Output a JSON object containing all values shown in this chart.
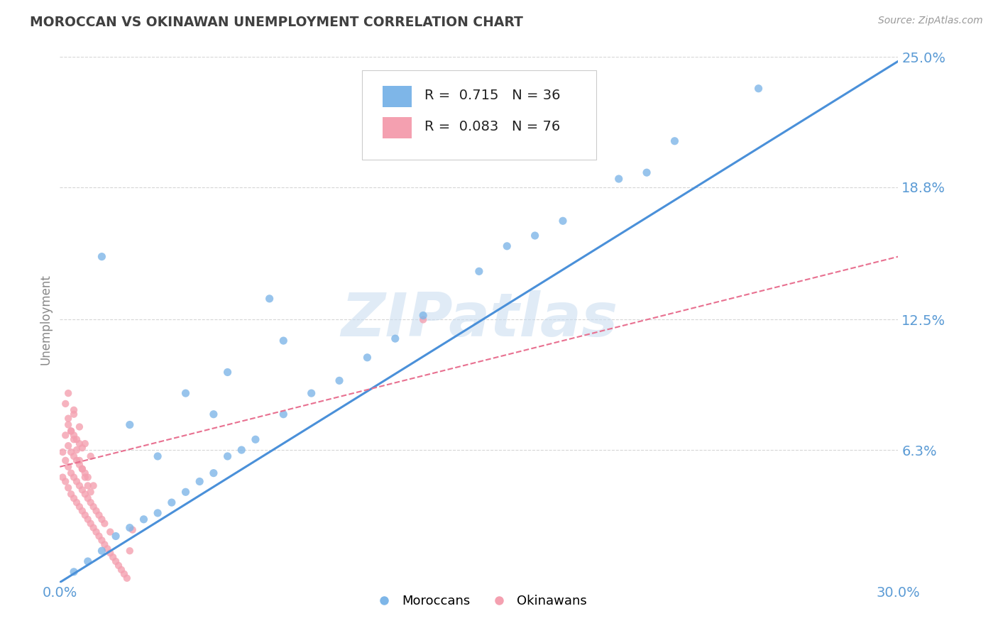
{
  "title": "MOROCCAN VS OKINAWAN UNEMPLOYMENT CORRELATION CHART",
  "source_text": "Source: ZipAtlas.com",
  "ylabel": "Unemployment",
  "xlim": [
    0.0,
    0.3
  ],
  "ylim": [
    0.0,
    0.25
  ],
  "ytick_labels": [
    "6.3%",
    "12.5%",
    "18.8%",
    "25.0%"
  ],
  "ytick_positions": [
    0.063,
    0.125,
    0.188,
    0.25
  ],
  "blue_color": "#7EB6E8",
  "pink_color": "#F4A0B0",
  "blue_line_color": "#4A90D9",
  "pink_line_color": "#E87090",
  "background_color": "#FFFFFF",
  "grid_color": "#CCCCCC",
  "title_color": "#404040",
  "axis_label_color": "#5B9BD5",
  "legend_R1": "0.715",
  "legend_N1": "36",
  "legend_R2": "0.083",
  "legend_N2": "76",
  "legend_label1": "Moroccans",
  "legend_label2": "Okinawans",
  "watermark": "ZIPatlas",
  "moroccans_x": [
    0.005,
    0.01,
    0.015,
    0.02,
    0.025,
    0.03,
    0.035,
    0.04,
    0.045,
    0.05,
    0.055,
    0.06,
    0.065,
    0.07,
    0.08,
    0.09,
    0.1,
    0.11,
    0.12,
    0.13,
    0.15,
    0.16,
    0.17,
    0.18,
    0.2,
    0.21,
    0.22,
    0.25,
    0.035,
    0.025,
    0.045,
    0.06,
    0.08,
    0.055,
    0.015,
    0.075
  ],
  "moroccans_y": [
    0.005,
    0.01,
    0.015,
    0.022,
    0.026,
    0.03,
    0.033,
    0.038,
    0.043,
    0.048,
    0.052,
    0.06,
    0.063,
    0.068,
    0.08,
    0.09,
    0.096,
    0.107,
    0.116,
    0.127,
    0.148,
    0.16,
    0.165,
    0.172,
    0.192,
    0.195,
    0.21,
    0.235,
    0.06,
    0.075,
    0.09,
    0.1,
    0.115,
    0.08,
    0.155,
    0.135
  ],
  "okinawans_x": [
    0.001,
    0.001,
    0.002,
    0.002,
    0.002,
    0.003,
    0.003,
    0.003,
    0.003,
    0.004,
    0.004,
    0.004,
    0.004,
    0.005,
    0.005,
    0.005,
    0.005,
    0.005,
    0.006,
    0.006,
    0.006,
    0.006,
    0.007,
    0.007,
    0.007,
    0.007,
    0.008,
    0.008,
    0.008,
    0.008,
    0.009,
    0.009,
    0.009,
    0.01,
    0.01,
    0.01,
    0.011,
    0.011,
    0.012,
    0.012,
    0.012,
    0.013,
    0.013,
    0.014,
    0.014,
    0.015,
    0.015,
    0.016,
    0.016,
    0.017,
    0.018,
    0.018,
    0.019,
    0.02,
    0.021,
    0.022,
    0.023,
    0.024,
    0.025,
    0.026,
    0.002,
    0.003,
    0.004,
    0.005,
    0.006,
    0.007,
    0.008,
    0.009,
    0.01,
    0.011,
    0.003,
    0.005,
    0.007,
    0.009,
    0.011,
    0.13
  ],
  "okinawans_y": [
    0.05,
    0.062,
    0.048,
    0.058,
    0.07,
    0.045,
    0.055,
    0.065,
    0.075,
    0.042,
    0.052,
    0.062,
    0.072,
    0.04,
    0.05,
    0.06,
    0.07,
    0.08,
    0.038,
    0.048,
    0.058,
    0.068,
    0.036,
    0.046,
    0.056,
    0.066,
    0.034,
    0.044,
    0.054,
    0.064,
    0.032,
    0.042,
    0.052,
    0.03,
    0.04,
    0.05,
    0.028,
    0.038,
    0.026,
    0.036,
    0.046,
    0.024,
    0.034,
    0.022,
    0.032,
    0.02,
    0.03,
    0.018,
    0.028,
    0.016,
    0.014,
    0.024,
    0.012,
    0.01,
    0.008,
    0.006,
    0.004,
    0.002,
    0.015,
    0.025,
    0.085,
    0.078,
    0.072,
    0.068,
    0.063,
    0.058,
    0.054,
    0.05,
    0.046,
    0.043,
    0.09,
    0.082,
    0.074,
    0.066,
    0.06,
    0.125
  ]
}
